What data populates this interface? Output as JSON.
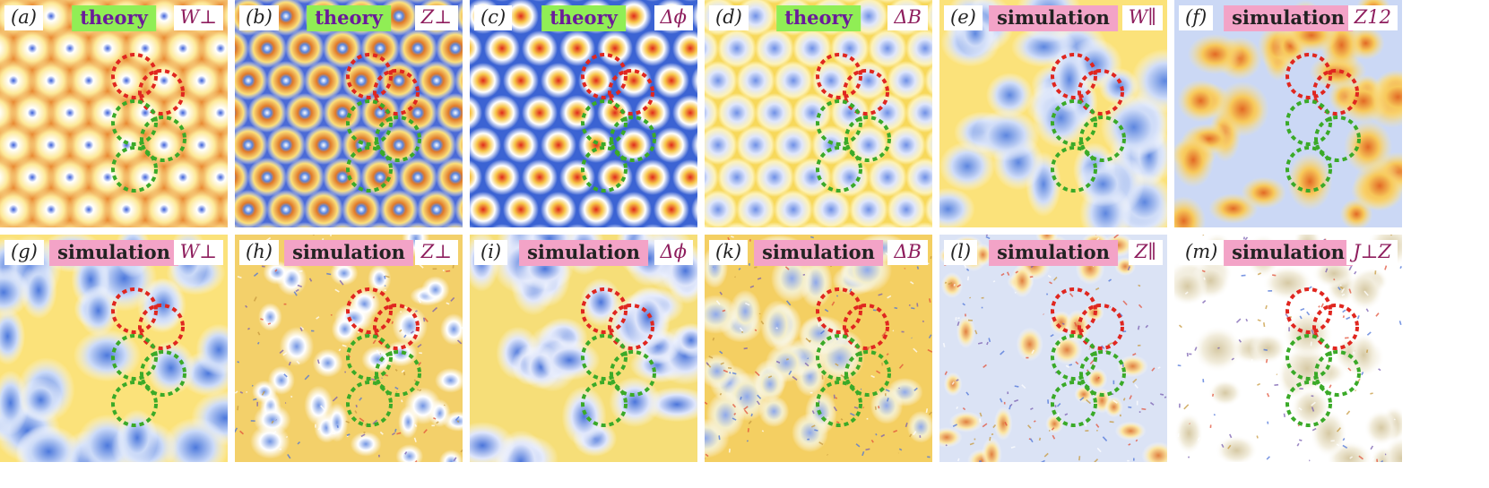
{
  "colors": {
    "theory_tag_bg": "#90ee55",
    "theory_tag_text": "#6a1b9a",
    "simulation_tag_bg": "#f3a3c7",
    "simulation_tag_text": "#222222",
    "quantity_text": "#8e1d5d",
    "red_dashed": "#e0261f",
    "green_dashed": "#3aaa28",
    "field_orange": "#e6842c",
    "field_yellow": "#fbe67a",
    "field_blue": "#3d67d6",
    "field_white": "#ffffff"
  },
  "panels": [
    {
      "label": "(a)",
      "tag": "theory",
      "quantity": "W⊥"
    },
    {
      "label": "(b)",
      "tag": "theory",
      "quantity": "Z⊥"
    },
    {
      "label": "(c)",
      "tag": "theory",
      "quantity": "Δϕ"
    },
    {
      "label": "(d)",
      "tag": "theory",
      "quantity": "ΔB"
    },
    {
      "label": "(e)",
      "tag": "simulation",
      "quantity": "W∥"
    },
    {
      "label": "(f)",
      "tag": "simulation",
      "quantity": "Z12"
    },
    {
      "label": "(g)",
      "tag": "simulation",
      "quantity": "W⊥"
    },
    {
      "label": "(h)",
      "tag": "simulation",
      "quantity": "Z⊥"
    },
    {
      "label": "(i)",
      "tag": "simulation",
      "quantity": "Δϕ"
    },
    {
      "label": "(k)",
      "tag": "simulation",
      "quantity": "ΔB"
    },
    {
      "label": "(l)",
      "tag": "simulation",
      "quantity": "Z∥"
    },
    {
      "label": "(m)",
      "tag": "simulation",
      "quantity": "J⊥Z"
    }
  ]
}
